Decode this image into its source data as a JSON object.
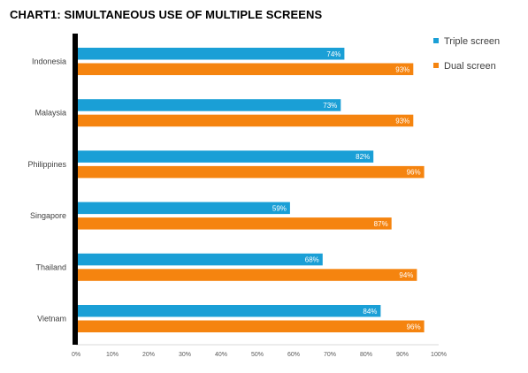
{
  "title": "CHART1: SIMULTANEOUS USE OF MULTIPLE SCREENS",
  "chart_data": {
    "type": "bar",
    "orientation": "horizontal",
    "title": "CHART1: SIMULTANEOUS USE OF MULTIPLE SCREENS",
    "categories": [
      "Indonesia",
      "Malaysia",
      "Philippines",
      "Singapore",
      "Thailand",
      "Vietnam"
    ],
    "series": [
      {
        "name": "Triple screen",
        "color": "#1a9fd6",
        "values": [
          74,
          73,
          82,
          59,
          68,
          84
        ]
      },
      {
        "name": "Dual screen",
        "color": "#f5840f",
        "values": [
          93,
          93,
          96,
          87,
          94,
          96
        ]
      }
    ],
    "value_labels": [
      [
        "74%",
        "73%",
        "82%",
        "59%",
        "68%",
        "84%"
      ],
      [
        "93%",
        "93%",
        "96%",
        "87%",
        "94%",
        "96%"
      ]
    ],
    "x_ticks": [
      "0%",
      "10%",
      "20%",
      "30%",
      "40%",
      "50%",
      "60%",
      "70%",
      "80%",
      "90%",
      "100%"
    ],
    "xlim": [
      0,
      100
    ],
    "xlabel": "",
    "ylabel": "",
    "grid": false,
    "legend_position": "top-right"
  }
}
